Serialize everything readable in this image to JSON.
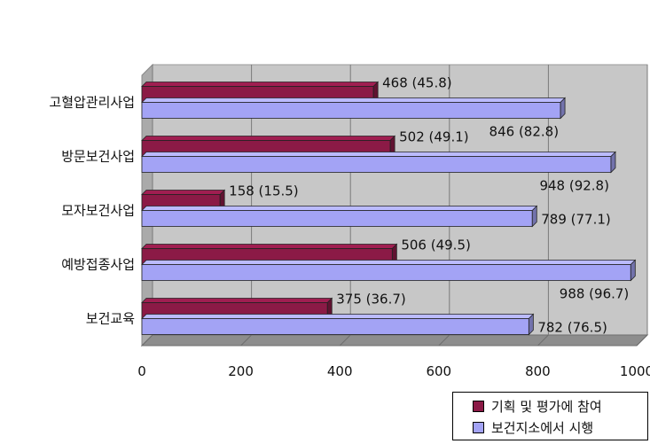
{
  "chart_data": {
    "type": "bar",
    "orientation": "horizontal",
    "style": "3d",
    "categories": [
      "고혈압관리사업",
      "방문보건사업",
      "모자보건사업",
      "예방접종사업",
      "보건교육"
    ],
    "series": [
      {
        "name": "기획 및 평가에 참여",
        "values": [
          468,
          502,
          158,
          506,
          375
        ],
        "labels": [
          "468 (45.8)",
          "502 (49.1)",
          "158 (15.5)",
          "506 (49.5)",
          "375 (36.7)"
        ]
      },
      {
        "name": "보건지소에서 시행",
        "values": [
          846,
          948,
          789,
          988,
          782
        ],
        "labels": [
          "846 (82.8)",
          "948 (92.8)",
          "789 (77.1)",
          "988 (96.7)",
          "782 (76.5)"
        ]
      }
    ],
    "xlim": [
      0,
      1000
    ],
    "xticks": [
      0,
      200,
      400,
      600,
      800,
      1000
    ],
    "grid": true,
    "legend_position": "bottom-right"
  },
  "colors": {
    "series1": "#8b1a46",
    "series2": "#a3a3f5",
    "wall": "#c7c7c7",
    "floor": "#8d8d8d"
  }
}
